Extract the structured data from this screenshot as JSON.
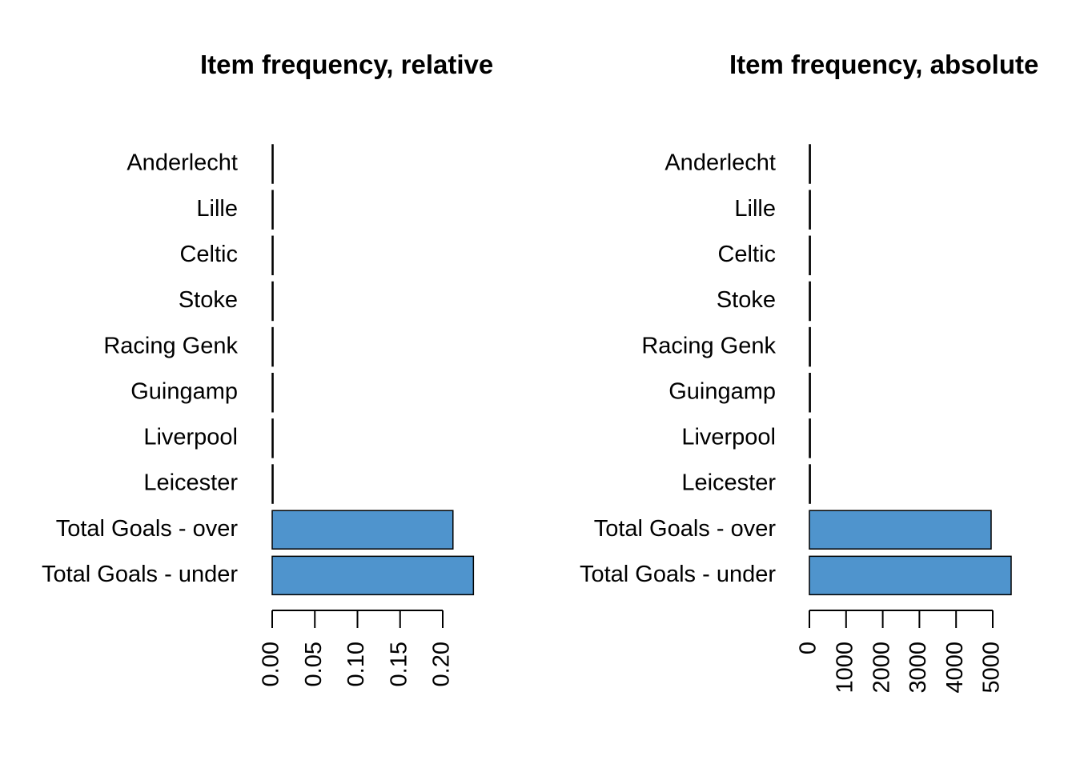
{
  "chart_data": [
    {
      "type": "bar",
      "orientation": "horizontal",
      "title": "Item frequency, relative",
      "categories": [
        "Anderlecht",
        "Lille",
        "Celtic",
        "Stoke",
        "Racing Genk",
        "Guingamp",
        "Liverpool",
        "Leicester",
        "Total Goals - over",
        "Total Goals - under"
      ],
      "values": [
        0.001,
        0.001,
        0.001,
        0.001,
        0.001,
        0.001,
        0.001,
        0.001,
        0.212,
        0.236
      ],
      "color": "#4f94cd",
      "xlim": [
        0,
        0.25
      ],
      "xticks": [
        {
          "value": 0,
          "label": "0.00"
        },
        0.05,
        {
          "value": 0.1,
          "label": "0.10"
        },
        0.15,
        {
          "value": 0.2,
          "label": "0.20"
        }
      ]
    },
    {
      "type": "bar",
      "orientation": "horizontal",
      "title": "Item frequency, absolute",
      "categories": [
        "Anderlecht",
        "Lille",
        "Celtic",
        "Stoke",
        "Racing Genk",
        "Guingamp",
        "Liverpool",
        "Leicester",
        "Total Goals - over",
        "Total Goals - under"
      ],
      "values": [
        25,
        25,
        25,
        25,
        25,
        25,
        25,
        25,
        4956,
        5502
      ],
      "color": "#4f94cd",
      "xlim": [
        0,
        6000
      ],
      "xticks": [
        0,
        1000,
        2000,
        3000,
        4000,
        5000
      ]
    }
  ]
}
